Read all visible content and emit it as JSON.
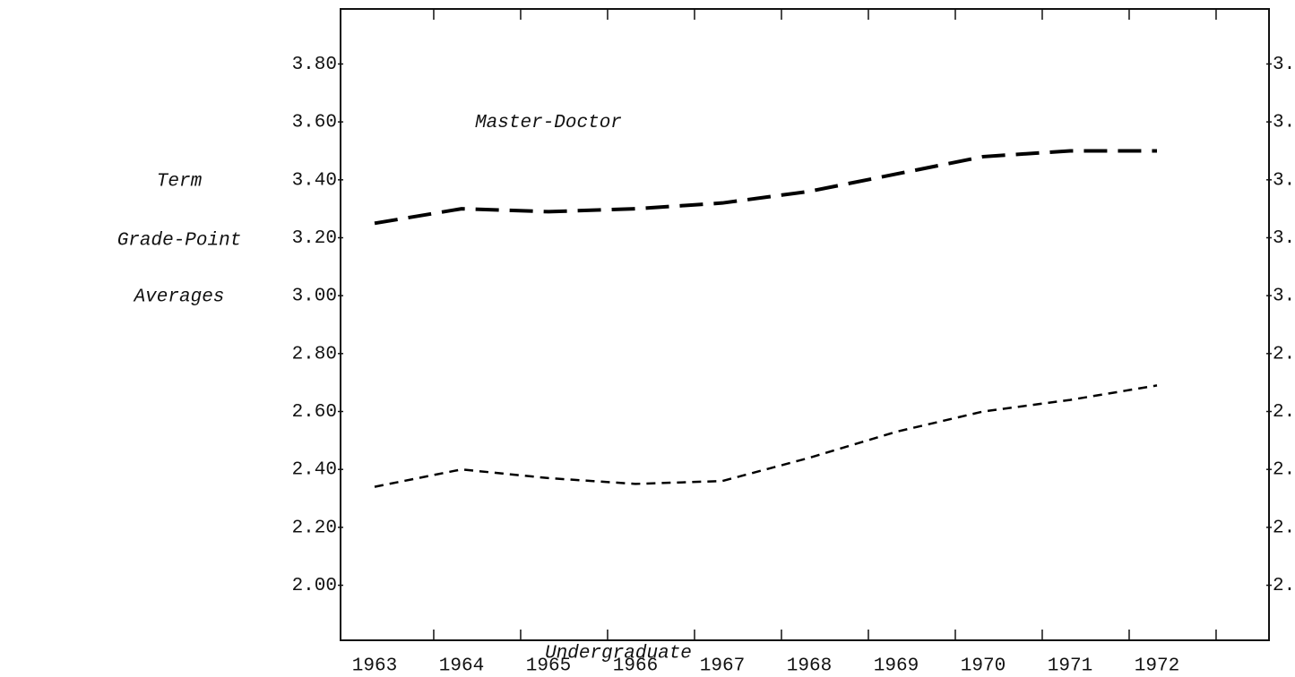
{
  "chart_data": {
    "type": "line",
    "y_label": [
      "Term",
      "Grade-Point",
      "Averages"
    ],
    "categories": [
      "1963",
      "1964",
      "1965",
      "1966",
      "1967",
      "1968",
      "1969",
      "1970",
      "1971",
      "1972"
    ],
    "series": [
      {
        "name": "Master-Doctor",
        "color": "#000000",
        "values": [
          3.25,
          3.3,
          3.29,
          3.3,
          3.32,
          3.36,
          3.42,
          3.48,
          3.5,
          3.5
        ]
      },
      {
        "name": "Undergraduate",
        "color": "#000000",
        "values": [
          2.34,
          2.4,
          2.37,
          2.35,
          2.36,
          2.44,
          2.53,
          2.6,
          2.64,
          2.69
        ]
      }
    ],
    "ylim": [
      1.81,
      3.99
    ],
    "yticks": [
      {
        "value": 2.0,
        "label": "2.00"
      },
      {
        "value": 2.2,
        "label": "2.20"
      },
      {
        "value": 2.4,
        "label": "2.40"
      },
      {
        "value": 2.6,
        "label": "2.60"
      },
      {
        "value": 2.8,
        "label": "2.80"
      },
      {
        "value": 3.0,
        "label": "3.00"
      },
      {
        "value": 3.2,
        "label": "3.20"
      },
      {
        "value": 3.4,
        "label": "3.40"
      },
      {
        "value": 3.6,
        "label": "3.60"
      },
      {
        "value": 3.8,
        "label": "3.80"
      }
    ],
    "grid": false
  }
}
